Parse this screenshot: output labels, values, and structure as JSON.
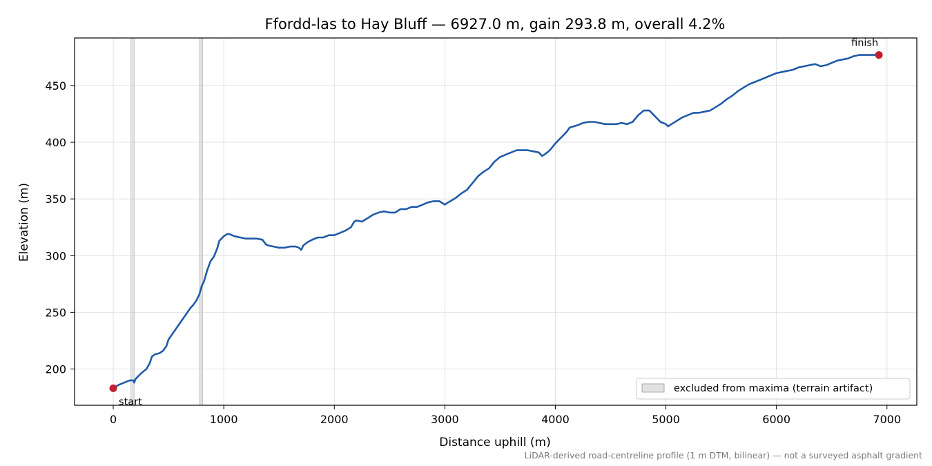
{
  "chart_data": {
    "type": "line",
    "title": "Ffordd-las to Hay Bluff — 6927.0 m, gain 293.8 m, overall 4.2%",
    "xlabel": "Distance uphill (m)",
    "ylabel": "Elevation (m)",
    "xlim": [
      -350,
      7270
    ],
    "ylim": [
      168,
      492
    ],
    "xticks": [
      0,
      1000,
      2000,
      3000,
      4000,
      5000,
      6000,
      7000
    ],
    "yticks": [
      200,
      250,
      300,
      350,
      400,
      450
    ],
    "grid": true,
    "legend": {
      "placement": "lower-right",
      "entries": [
        "excluded from maxima (terrain artifact)"
      ]
    },
    "excluded_bands": [
      [
        160,
        190
      ],
      [
        780,
        810
      ]
    ],
    "series": [
      {
        "name": "",
        "color": "#1f5aa8",
        "points": [
          [
            0,
            183
          ],
          [
            50,
            186
          ],
          [
            100,
            188
          ],
          [
            150,
            190
          ],
          [
            180,
            190
          ],
          [
            190,
            188
          ],
          [
            200,
            191
          ],
          [
            250,
            196
          ],
          [
            300,
            200
          ],
          [
            330,
            205
          ],
          [
            350,
            211
          ],
          [
            380,
            213
          ],
          [
            420,
            214
          ],
          [
            450,
            216
          ],
          [
            480,
            220
          ],
          [
            500,
            226
          ],
          [
            550,
            233
          ],
          [
            600,
            240
          ],
          [
            650,
            247
          ],
          [
            700,
            254
          ],
          [
            720,
            256
          ],
          [
            750,
            260
          ],
          [
            780,
            266
          ],
          [
            800,
            273
          ],
          [
            820,
            277
          ],
          [
            850,
            287
          ],
          [
            880,
            295
          ],
          [
            910,
            299
          ],
          [
            940,
            306
          ],
          [
            960,
            313
          ],
          [
            1000,
            317
          ],
          [
            1030,
            319
          ],
          [
            1050,
            319
          ],
          [
            1100,
            317
          ],
          [
            1150,
            316
          ],
          [
            1200,
            315
          ],
          [
            1250,
            315
          ],
          [
            1300,
            315
          ],
          [
            1350,
            314
          ],
          [
            1380,
            310
          ],
          [
            1400,
            309
          ],
          [
            1450,
            308
          ],
          [
            1500,
            307
          ],
          [
            1550,
            307
          ],
          [
            1600,
            308
          ],
          [
            1650,
            308
          ],
          [
            1680,
            307
          ],
          [
            1700,
            305
          ],
          [
            1720,
            309
          ],
          [
            1760,
            312
          ],
          [
            1800,
            314
          ],
          [
            1850,
            316
          ],
          [
            1900,
            316
          ],
          [
            1950,
            318
          ],
          [
            2000,
            318
          ],
          [
            2050,
            320
          ],
          [
            2100,
            322
          ],
          [
            2150,
            325
          ],
          [
            2180,
            330
          ],
          [
            2200,
            331
          ],
          [
            2250,
            330
          ],
          [
            2300,
            333
          ],
          [
            2350,
            336
          ],
          [
            2400,
            338
          ],
          [
            2450,
            339
          ],
          [
            2500,
            338
          ],
          [
            2550,
            338
          ],
          [
            2600,
            341
          ],
          [
            2650,
            341
          ],
          [
            2700,
            343
          ],
          [
            2750,
            343
          ],
          [
            2800,
            345
          ],
          [
            2850,
            347
          ],
          [
            2900,
            348
          ],
          [
            2950,
            348
          ],
          [
            3000,
            345
          ],
          [
            3030,
            347
          ],
          [
            3050,
            348
          ],
          [
            3100,
            351
          ],
          [
            3150,
            355
          ],
          [
            3200,
            358
          ],
          [
            3250,
            364
          ],
          [
            3300,
            370
          ],
          [
            3350,
            374
          ],
          [
            3400,
            377
          ],
          [
            3450,
            383
          ],
          [
            3500,
            387
          ],
          [
            3550,
            389
          ],
          [
            3600,
            391
          ],
          [
            3650,
            393
          ],
          [
            3700,
            393
          ],
          [
            3750,
            393
          ],
          [
            3800,
            392
          ],
          [
            3850,
            391
          ],
          [
            3880,
            388
          ],
          [
            3900,
            389
          ],
          [
            3950,
            393
          ],
          [
            4000,
            399
          ],
          [
            4050,
            404
          ],
          [
            4100,
            409
          ],
          [
            4130,
            413
          ],
          [
            4200,
            415
          ],
          [
            4250,
            417
          ],
          [
            4300,
            418
          ],
          [
            4350,
            418
          ],
          [
            4400,
            417
          ],
          [
            4450,
            416
          ],
          [
            4500,
            416
          ],
          [
            4550,
            416
          ],
          [
            4600,
            417
          ],
          [
            4650,
            416
          ],
          [
            4700,
            418
          ],
          [
            4750,
            424
          ],
          [
            4800,
            428
          ],
          [
            4850,
            428
          ],
          [
            4900,
            423
          ],
          [
            4950,
            418
          ],
          [
            5000,
            416
          ],
          [
            5020,
            414
          ],
          [
            5050,
            416
          ],
          [
            5100,
            419
          ],
          [
            5150,
            422
          ],
          [
            5200,
            424
          ],
          [
            5250,
            426
          ],
          [
            5300,
            426
          ],
          [
            5350,
            427
          ],
          [
            5400,
            428
          ],
          [
            5450,
            431
          ],
          [
            5500,
            434
          ],
          [
            5550,
            438
          ],
          [
            5600,
            441
          ],
          [
            5650,
            445
          ],
          [
            5700,
            448
          ],
          [
            5750,
            451
          ],
          [
            5800,
            453
          ],
          [
            5850,
            455
          ],
          [
            5900,
            457
          ],
          [
            5950,
            459
          ],
          [
            6000,
            461
          ],
          [
            6050,
            462
          ],
          [
            6100,
            463
          ],
          [
            6150,
            464
          ],
          [
            6200,
            466
          ],
          [
            6250,
            467
          ],
          [
            6300,
            468
          ],
          [
            6350,
            469
          ],
          [
            6400,
            467
          ],
          [
            6450,
            468
          ],
          [
            6500,
            470
          ],
          [
            6550,
            472
          ],
          [
            6600,
            473
          ],
          [
            6650,
            474
          ],
          [
            6700,
            476
          ],
          [
            6750,
            477
          ],
          [
            6800,
            477
          ],
          [
            6850,
            477
          ],
          [
            6900,
            477
          ],
          [
            6927,
            477
          ]
        ]
      }
    ],
    "markers": [
      {
        "label": "start",
        "x": 0,
        "y": 183
      },
      {
        "label": "finish",
        "x": 6927,
        "y": 477
      }
    ],
    "note": "LiDAR-derived road-centreline profile (1 m DTM, bilinear) — not a surveyed asphalt gradient"
  },
  "colors": {
    "line": "#1f5aa8",
    "marker": "#c0202e",
    "band": "#cfcfcf",
    "grid": "#e2e2e2",
    "note": "#7a7a7a"
  }
}
